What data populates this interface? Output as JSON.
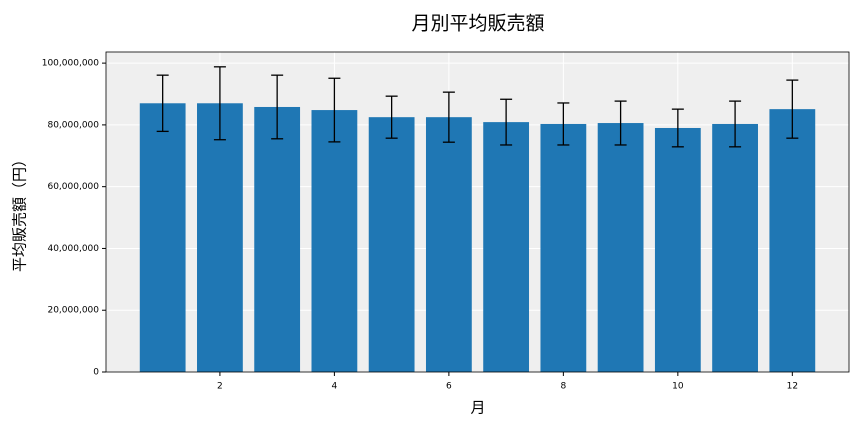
{
  "chart_data": {
    "type": "bar",
    "title": "月別平均販売額",
    "x_label": "月",
    "y_label": "平均販売額（円）",
    "x": [
      1,
      2,
      3,
      4,
      5,
      6,
      7,
      8,
      9,
      10,
      11,
      12
    ],
    "values": [
      87000000,
      87000000,
      85800000,
      84800000,
      82500000,
      82500000,
      80900000,
      80300000,
      80600000,
      79000000,
      80300000,
      85100000
    ],
    "errors": [
      9100000,
      11800000,
      10300000,
      10300000,
      6800000,
      8100000,
      7400000,
      6800000,
      7100000,
      6100000,
      7400000,
      9400000
    ],
    "color": "#1f77b4",
    "xlim": [
      0.01,
      12.99
    ],
    "xticks": [
      2,
      4,
      6,
      8,
      10,
      12
    ],
    "ylim": [
      0,
      103600000
    ],
    "yticks": [
      0,
      {
        "value": 20000000,
        "label": "20,000,000"
      },
      {
        "value": 40000000,
        "label": "40,000,000"
      },
      {
        "value": 60000000,
        "label": "60,000,000"
      },
      {
        "value": 80000000,
        "label": "80,000,000"
      },
      {
        "value": 100000000,
        "label": "100,000,000"
      }
    ],
    "grid": true
  }
}
